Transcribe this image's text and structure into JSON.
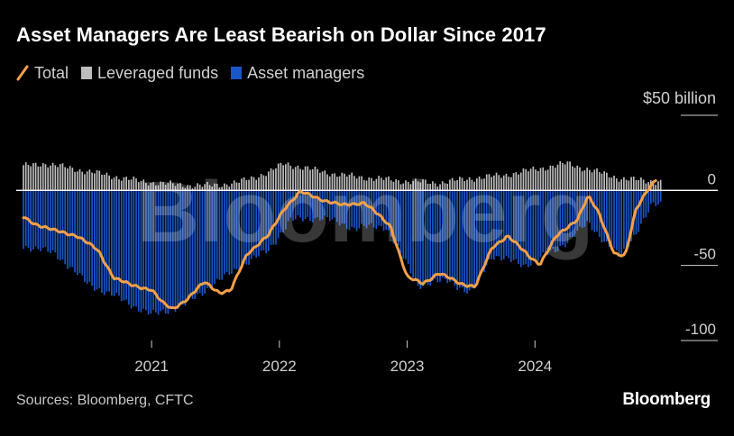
{
  "title": "Asset Managers Are Least Bearish on Dollar Since 2017",
  "legend": [
    {
      "label": "Total",
      "color": "#f5a04a",
      "shape": "line-icon"
    },
    {
      "label": "Leveraged funds",
      "color": "#bdbdbd",
      "shape": "square-icon"
    },
    {
      "label": "Asset managers",
      "color": "#1a56c8",
      "shape": "square-icon"
    }
  ],
  "unit_label": "$50 billion",
  "source": "Sources: Bloomberg, CFTC",
  "watermark": "Bloomberg",
  "logo": "Bloomberg",
  "chart_data": {
    "type": "bar",
    "title": "Asset Managers Are Least Bearish on Dollar Since 2017",
    "ylabel": "$50 billion",
    "ylim": [
      -100,
      50
    ],
    "y_ticks": [
      0,
      -50,
      -100
    ],
    "y_tick_labels": [
      "0",
      "-50",
      "-100"
    ],
    "x_ticks": [
      "2021",
      "2022",
      "2023",
      "2024"
    ],
    "x_range": [
      "2020-01-01",
      "2024-12-31"
    ],
    "grid": "y",
    "legend_position": "top-left",
    "series": [
      {
        "name": "Leveraged funds",
        "kind": "bar",
        "color": "#bdbdbd",
        "anchors": [
          [
            "2020-01-01",
            16
          ],
          [
            "2020-03-01",
            18
          ],
          [
            "2020-06-01",
            14
          ],
          [
            "2020-09-01",
            10
          ],
          [
            "2020-12-01",
            6
          ],
          [
            "2021-03-01",
            4
          ],
          [
            "2021-06-01",
            3
          ],
          [
            "2021-09-01",
            5
          ],
          [
            "2021-12-01",
            12
          ],
          [
            "2022-01-15",
            18
          ],
          [
            "2022-04-01",
            14
          ],
          [
            "2022-07-01",
            10
          ],
          [
            "2022-10-01",
            8
          ],
          [
            "2023-01-01",
            6
          ],
          [
            "2023-04-01",
            5
          ],
          [
            "2023-07-01",
            8
          ],
          [
            "2023-10-01",
            10
          ],
          [
            "2024-01-01",
            14
          ],
          [
            "2024-04-01",
            18
          ],
          [
            "2024-06-01",
            14
          ],
          [
            "2024-09-01",
            8
          ],
          [
            "2024-12-01",
            6
          ]
        ]
      },
      {
        "name": "Asset managers",
        "kind": "bar",
        "color": "#1a56c8",
        "anchors": [
          [
            "2020-01-01",
            -37
          ],
          [
            "2020-04-01",
            -42
          ],
          [
            "2020-07-01",
            -62
          ],
          [
            "2020-10-01",
            -72
          ],
          [
            "2021-01-01",
            -83
          ],
          [
            "2021-04-01",
            -77
          ],
          [
            "2021-07-01",
            -62
          ],
          [
            "2021-10-01",
            -48
          ],
          [
            "2021-12-01",
            -40
          ],
          [
            "2022-02-01",
            -20
          ],
          [
            "2022-05-01",
            -18
          ],
          [
            "2022-08-01",
            -25
          ],
          [
            "2022-11-01",
            -24
          ],
          [
            "2023-02-01",
            -63
          ],
          [
            "2023-05-01",
            -60
          ],
          [
            "2023-07-01",
            -69
          ],
          [
            "2023-09-01",
            -43
          ],
          [
            "2023-12-01",
            -50
          ],
          [
            "2024-03-01",
            -40
          ],
          [
            "2024-06-01",
            -22
          ],
          [
            "2024-09-01",
            -45
          ],
          [
            "2024-12-01",
            -10
          ]
        ]
      },
      {
        "name": "Total",
        "kind": "line",
        "color": "#f5a04a",
        "anchors": [
          [
            "2020-01-01",
            -18
          ],
          [
            "2020-02-01",
            -22
          ],
          [
            "2020-04-01",
            -27
          ],
          [
            "2020-06-01",
            -30
          ],
          [
            "2020-08-01",
            -40
          ],
          [
            "2020-09-15",
            -58
          ],
          [
            "2020-11-01",
            -63
          ],
          [
            "2021-01-01",
            -66
          ],
          [
            "2021-02-01",
            -75
          ],
          [
            "2021-03-01",
            -79
          ],
          [
            "2021-04-15",
            -72
          ],
          [
            "2021-06-01",
            -61
          ],
          [
            "2021-07-15",
            -68
          ],
          [
            "2021-08-15",
            -67
          ],
          [
            "2021-10-01",
            -42
          ],
          [
            "2021-12-01",
            -30
          ],
          [
            "2022-01-15",
            -12
          ],
          [
            "2022-03-01",
            -1
          ],
          [
            "2022-05-01",
            -6
          ],
          [
            "2022-07-01",
            -10
          ],
          [
            "2022-09-01",
            -8
          ],
          [
            "2022-11-15",
            -24
          ],
          [
            "2023-01-01",
            -58
          ],
          [
            "2023-02-15",
            -62
          ],
          [
            "2023-04-01",
            -55
          ],
          [
            "2023-06-01",
            -62
          ],
          [
            "2023-07-15",
            -64
          ],
          [
            "2023-09-01",
            -38
          ],
          [
            "2023-10-15",
            -30
          ],
          [
            "2023-12-15",
            -44
          ],
          [
            "2024-01-15",
            -49
          ],
          [
            "2024-03-01",
            -31
          ],
          [
            "2024-05-01",
            -19
          ],
          [
            "2024-06-01",
            -4
          ],
          [
            "2024-07-01",
            -15
          ],
          [
            "2024-08-15",
            -42
          ],
          [
            "2024-09-15",
            -44
          ],
          [
            "2024-10-15",
            -13
          ],
          [
            "2024-11-15",
            0
          ],
          [
            "2024-12-15",
            8
          ]
        ]
      }
    ]
  }
}
